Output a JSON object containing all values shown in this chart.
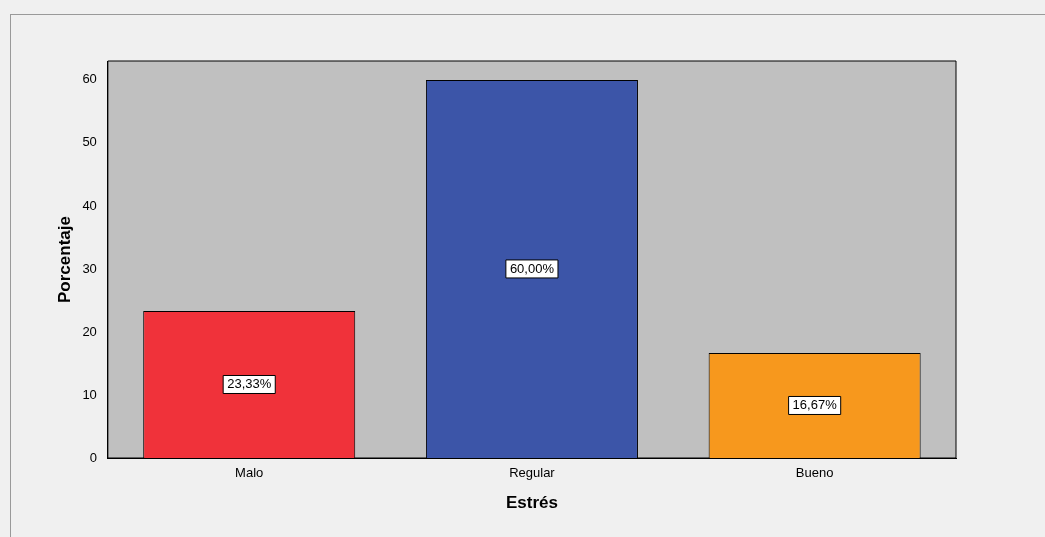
{
  "chart_data": {
    "type": "bar",
    "xlabel": "Estrés",
    "ylabel": "Porcentaje",
    "categories": [
      "Malo",
      "Regular",
      "Bueno"
    ],
    "values": [
      23.33,
      60.0,
      16.67
    ],
    "colors": [
      "#f0323a",
      "#3c55a8",
      "#f7981d"
    ],
    "value_labels": [
      "23,33%",
      "60,00%",
      "16,67%"
    ],
    "ylim": [
      0,
      63
    ],
    "yticks": [
      0,
      10,
      20,
      30,
      40,
      50,
      60
    ],
    "grid": false,
    "legend": false
  }
}
